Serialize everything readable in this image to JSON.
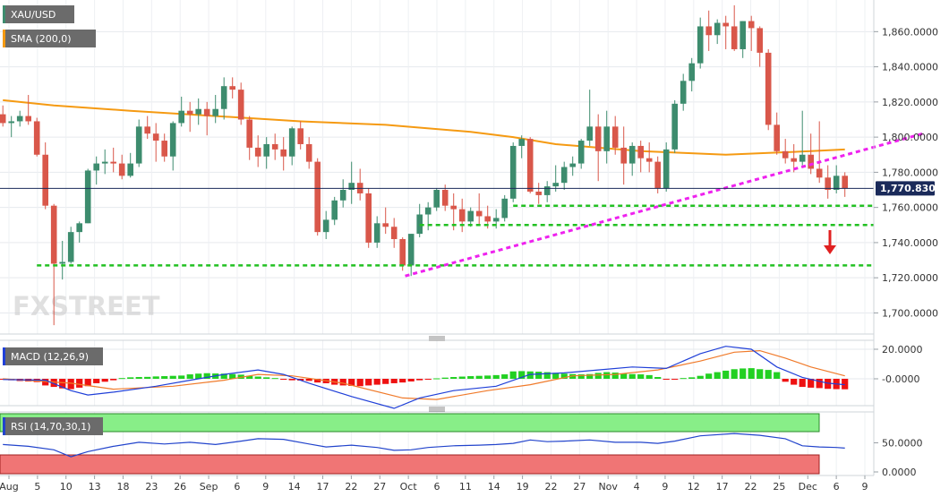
{
  "header": {
    "symbol": "XAU/USD",
    "sma_label": "SMA (200,0)",
    "macd_label": "MACD (12,26,9)",
    "rsi_label": "RSI (14,70,30,1)",
    "price_tag": "1,770.8300",
    "watermark": "FXSTREET"
  },
  "colors": {
    "bull": "#3d8c6e",
    "bear": "#d9574a",
    "sma": "#f59a12",
    "trendline": "#ee22ee",
    "support": "#22c022",
    "macd_line": "#1f3fd8",
    "signal_line": "#f07a2a",
    "hist_pos": "#22d022",
    "hist_neg": "#ee1111",
    "rsi_line": "#2244cc",
    "overbought": "#88ee88",
    "oversold": "#f07575",
    "arrow": "#e02020"
  },
  "chart_data": {
    "type": "candlestick",
    "y_range": [
      1688,
      1878
    ],
    "y_ticks": [
      "1,860.0000",
      "1,840.0000",
      "1,820.0000",
      "1,800.0000",
      "1,780.0000",
      "1,760.0000",
      "1,740.0000",
      "1,720.0000",
      "1,700.0000"
    ],
    "x_ticks": [
      "Aug",
      "5",
      "10",
      "13",
      "18",
      "23",
      "26",
      "Sep",
      "6",
      "9",
      "14",
      "17",
      "22",
      "27",
      "Oct",
      "6",
      "11",
      "14",
      "19",
      "22",
      "27",
      "Nov",
      "4",
      "9",
      "12",
      "17",
      "22",
      "25",
      "Dec",
      "6",
      "9"
    ],
    "last_price": 1770.83,
    "support_levels": [
      1761,
      1750,
      1727
    ],
    "candles": [
      [
        1813,
        1818,
        1806,
        1808
      ],
      [
        1808,
        1812,
        1800,
        1809
      ],
      [
        1809,
        1815,
        1806,
        1812
      ],
      [
        1812,
        1824,
        1807,
        1809
      ],
      [
        1809,
        1811,
        1789,
        1790
      ],
      [
        1790,
        1797,
        1759,
        1761
      ],
      [
        1761,
        1762,
        1693,
        1728
      ],
      [
        1728,
        1741,
        1719,
        1729
      ],
      [
        1729,
        1749,
        1728,
        1746
      ],
      [
        1746,
        1752,
        1740,
        1751
      ],
      [
        1751,
        1782,
        1751,
        1781
      ],
      [
        1781,
        1789,
        1773,
        1785
      ],
      [
        1785,
        1793,
        1779,
        1786
      ],
      [
        1786,
        1794,
        1780,
        1785
      ],
      [
        1785,
        1790,
        1776,
        1778
      ],
      [
        1778,
        1791,
        1777,
        1785
      ],
      [
        1785,
        1810,
        1783,
        1806
      ],
      [
        1806,
        1812,
        1799,
        1802
      ],
      [
        1802,
        1808,
        1786,
        1798
      ],
      [
        1798,
        1802,
        1786,
        1789
      ],
      [
        1789,
        1809,
        1781,
        1808
      ],
      [
        1808,
        1823,
        1806,
        1815
      ],
      [
        1815,
        1820,
        1803,
        1813
      ],
      [
        1813,
        1822,
        1807,
        1816
      ],
      [
        1816,
        1820,
        1801,
        1812
      ],
      [
        1812,
        1824,
        1808,
        1816
      ],
      [
        1816,
        1834,
        1810,
        1829
      ],
      [
        1829,
        1834,
        1822,
        1827
      ],
      [
        1827,
        1831,
        1807,
        1810
      ],
      [
        1810,
        1812,
        1787,
        1794
      ],
      [
        1794,
        1801,
        1783,
        1789
      ],
      [
        1789,
        1800,
        1782,
        1796
      ],
      [
        1796,
        1802,
        1787,
        1793
      ],
      [
        1793,
        1800,
        1781,
        1789
      ],
      [
        1789,
        1806,
        1784,
        1805
      ],
      [
        1805,
        1809,
        1793,
        1796
      ],
      [
        1796,
        1800,
        1782,
        1786
      ],
      [
        1786,
        1788,
        1744,
        1746
      ],
      [
        1746,
        1758,
        1742,
        1753
      ],
      [
        1753,
        1766,
        1750,
        1764
      ],
      [
        1764,
        1776,
        1760,
        1770
      ],
      [
        1770,
        1786,
        1762,
        1774
      ],
      [
        1774,
        1782,
        1764,
        1768
      ],
      [
        1768,
        1771,
        1737,
        1740
      ],
      [
        1740,
        1755,
        1737,
        1751
      ],
      [
        1751,
        1760,
        1745,
        1749
      ],
      [
        1749,
        1754,
        1737,
        1742
      ],
      [
        1742,
        1743,
        1724,
        1727
      ],
      [
        1727,
        1745,
        1721,
        1745
      ],
      [
        1745,
        1762,
        1743,
        1756
      ],
      [
        1756,
        1763,
        1747,
        1760
      ],
      [
        1760,
        1771,
        1758,
        1770
      ],
      [
        1770,
        1773,
        1758,
        1761
      ],
      [
        1761,
        1768,
        1747,
        1759
      ],
      [
        1759,
        1765,
        1746,
        1752
      ],
      [
        1752,
        1760,
        1749,
        1758
      ],
      [
        1758,
        1768,
        1750,
        1755
      ],
      [
        1755,
        1761,
        1748,
        1752
      ],
      [
        1752,
        1759,
        1748,
        1754
      ],
      [
        1754,
        1767,
        1752,
        1765
      ],
      [
        1765,
        1797,
        1763,
        1795
      ],
      [
        1795,
        1801,
        1788,
        1799
      ],
      [
        1799,
        1800,
        1768,
        1769
      ],
      [
        1769,
        1774,
        1762,
        1767
      ],
      [
        1767,
        1775,
        1763,
        1772
      ],
      [
        1772,
        1784,
        1769,
        1774
      ],
      [
        1774,
        1786,
        1770,
        1783
      ],
      [
        1783,
        1789,
        1778,
        1785
      ],
      [
        1785,
        1799,
        1782,
        1798
      ],
      [
        1798,
        1827,
        1795,
        1806
      ],
      [
        1806,
        1813,
        1775,
        1792
      ],
      [
        1792,
        1815,
        1785,
        1806
      ],
      [
        1806,
        1812,
        1790,
        1794
      ],
      [
        1794,
        1806,
        1773,
        1785
      ],
      [
        1785,
        1797,
        1778,
        1795
      ],
      [
        1795,
        1798,
        1780,
        1788
      ],
      [
        1788,
        1797,
        1780,
        1786
      ],
      [
        1786,
        1789,
        1768,
        1771
      ],
      [
        1771,
        1797,
        1769,
        1793
      ],
      [
        1793,
        1821,
        1791,
        1819
      ],
      [
        1819,
        1836,
        1815,
        1832
      ],
      [
        1832,
        1845,
        1826,
        1842
      ],
      [
        1842,
        1868,
        1839,
        1863
      ],
      [
        1863,
        1872,
        1849,
        1858
      ],
      [
        1858,
        1867,
        1853,
        1865
      ],
      [
        1865,
        1869,
        1850,
        1863
      ],
      [
        1863,
        1875,
        1849,
        1850
      ],
      [
        1850,
        1866,
        1845,
        1866
      ],
      [
        1866,
        1869,
        1849,
        1862
      ],
      [
        1862,
        1863,
        1840,
        1848
      ],
      [
        1848,
        1850,
        1804,
        1807
      ],
      [
        1807,
        1814,
        1790,
        1792
      ],
      [
        1792,
        1799,
        1785,
        1788
      ],
      [
        1788,
        1796,
        1780,
        1786
      ],
      [
        1786,
        1815,
        1784,
        1790
      ],
      [
        1790,
        1802,
        1779,
        1782
      ],
      [
        1782,
        1809,
        1774,
        1777
      ],
      [
        1777,
        1784,
        1765,
        1770
      ],
      [
        1770,
        1784,
        1768,
        1778
      ],
      [
        1778,
        1780,
        1766,
        1771
      ]
    ],
    "sma": [
      [
        0,
        1821
      ],
      [
        6,
        1818
      ],
      [
        15,
        1815
      ],
      [
        25,
        1812
      ],
      [
        35,
        1809
      ],
      [
        45,
        1807
      ],
      [
        55,
        1803
      ],
      [
        60,
        1800
      ],
      [
        65,
        1796
      ],
      [
        70,
        1794
      ],
      [
        75,
        1792
      ],
      [
        80,
        1791
      ],
      [
        85,
        1790
      ],
      [
        90,
        1791
      ],
      [
        95,
        1792
      ],
      [
        99,
        1793
      ]
    ],
    "trendline": [
      [
        47.3,
        1721
      ],
      [
        108.2,
        1802
      ]
    ],
    "macd": [
      [
        0,
        -0.5
      ],
      [
        5,
        -1
      ],
      [
        8,
        -8
      ],
      [
        10,
        -11
      ],
      [
        13,
        -9
      ],
      [
        18,
        -5
      ],
      [
        22,
        -1
      ],
      [
        26,
        3
      ],
      [
        30,
        6
      ],
      [
        33,
        3
      ],
      [
        36,
        -3
      ],
      [
        41,
        -12
      ],
      [
        46,
        -20
      ],
      [
        49,
        -13
      ],
      [
        53,
        -8
      ],
      [
        58,
        -5
      ],
      [
        62,
        3
      ],
      [
        66,
        4
      ],
      [
        70,
        6
      ],
      [
        74,
        8
      ],
      [
        78,
        7
      ],
      [
        82,
        17
      ],
      [
        85,
        22
      ],
      [
        88,
        20
      ],
      [
        91,
        8
      ],
      [
        94,
        1
      ],
      [
        97,
        -3
      ],
      [
        99,
        -4
      ]
    ],
    "signal": [
      [
        0,
        0
      ],
      [
        8,
        -3
      ],
      [
        13,
        -7
      ],
      [
        20,
        -5
      ],
      [
        26,
        -1
      ],
      [
        30,
        3
      ],
      [
        34,
        2
      ],
      [
        40,
        -3
      ],
      [
        47,
        -13
      ],
      [
        51,
        -14
      ],
      [
        57,
        -8
      ],
      [
        62,
        -4
      ],
      [
        67,
        2
      ],
      [
        72,
        3
      ],
      [
        77,
        6
      ],
      [
        82,
        12
      ],
      [
        86,
        18
      ],
      [
        89,
        19
      ],
      [
        92,
        14
      ],
      [
        95,
        8
      ],
      [
        99,
        2
      ]
    ],
    "histogram": [
      -0.5,
      -1,
      -1.5,
      -1.8,
      -2.2,
      -4.5,
      -5.5,
      -6.5,
      -7,
      -6,
      -5,
      -3,
      -2,
      -1,
      0.5,
      1,
      1.2,
      1.3,
      1.6,
      1.8,
      2,
      2.2,
      3,
      3.5,
      3.8,
      3.6,
      3.5,
      3.2,
      2.8,
      2,
      1.5,
      1,
      0.5,
      -0.5,
      -1,
      -1.2,
      -1.4,
      -2.5,
      -3,
      -4,
      -4.5,
      -4.8,
      -5,
      -4.5,
      -4,
      -3.5,
      -3,
      -2.5,
      -1.8,
      -1,
      -0.5,
      0.3,
      0.8,
      1.2,
      1.5,
      1.8,
      2,
      2.2,
      2.5,
      3,
      5,
      5.2,
      5,
      4.8,
      4.5,
      4,
      3.5,
      3.2,
      3,
      3.2,
      4,
      4.5,
      4.2,
      3.5,
      3.2,
      3,
      2.5,
      1.2,
      -0.5,
      -0.5,
      0.5,
      1,
      2,
      3.5,
      4.5,
      5.5,
      6.5,
      7,
      7.2,
      6.5,
      6,
      4.5,
      -2,
      -4,
      -5.5,
      -6,
      -6.3,
      -6.8,
      -7,
      -7.1
    ],
    "rsi": [
      [
        0,
        47
      ],
      [
        3,
        44
      ],
      [
        6,
        38
      ],
      [
        8,
        26
      ],
      [
        10,
        35
      ],
      [
        13,
        44
      ],
      [
        16,
        51
      ],
      [
        19,
        48
      ],
      [
        22,
        51
      ],
      [
        25,
        47
      ],
      [
        28,
        53
      ],
      [
        30,
        57
      ],
      [
        33,
        56
      ],
      [
        36,
        48
      ],
      [
        38,
        43
      ],
      [
        41,
        46
      ],
      [
        44,
        42
      ],
      [
        46,
        37
      ],
      [
        48,
        38
      ],
      [
        50,
        42
      ],
      [
        53,
        45
      ],
      [
        56,
        46
      ],
      [
        58,
        47
      ],
      [
        60,
        49
      ],
      [
        62,
        55
      ],
      [
        64,
        52
      ],
      [
        66,
        53
      ],
      [
        69,
        55
      ],
      [
        72,
        51
      ],
      [
        75,
        51
      ],
      [
        77,
        49
      ],
      [
        79,
        53
      ],
      [
        82,
        62
      ],
      [
        86,
        66
      ],
      [
        89,
        63
      ],
      [
        92,
        57
      ],
      [
        94,
        45
      ],
      [
        96,
        43
      ],
      [
        98,
        42
      ],
      [
        99,
        41
      ]
    ],
    "macd_ticks": [
      "20.0000",
      "-0.0000"
    ],
    "rsi_ticks": [
      "50.0000",
      "0.0000"
    ]
  }
}
